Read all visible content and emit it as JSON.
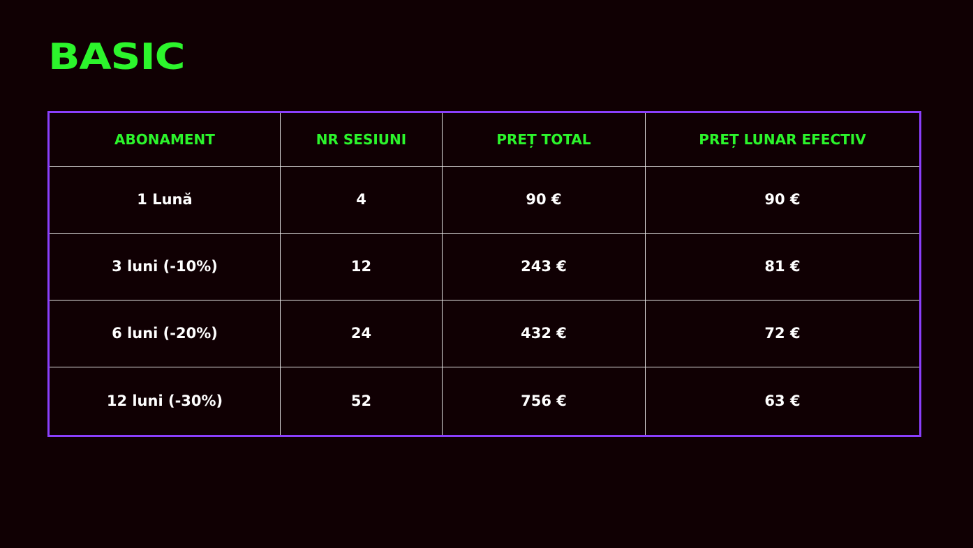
{
  "title": "BASIC",
  "colors": {
    "background": "#100003",
    "accent_green": "#2cf52c",
    "border_purple": "#8a3ffc"
  },
  "table": {
    "headers": [
      "ABONAMENT",
      "NR SESIUNI",
      "PREȚ TOTAL",
      "PREȚ LUNAR EFECTIV"
    ],
    "rows": [
      [
        "1 Lună",
        "4",
        "90 €",
        "90 €"
      ],
      [
        "3 luni (-10%)",
        "12",
        "243 €",
        "81 €"
      ],
      [
        "6 luni (-20%)",
        "24",
        "432 €",
        "72 €"
      ],
      [
        "12 luni (-30%)",
        "52",
        "756 €",
        "63 €"
      ]
    ]
  }
}
